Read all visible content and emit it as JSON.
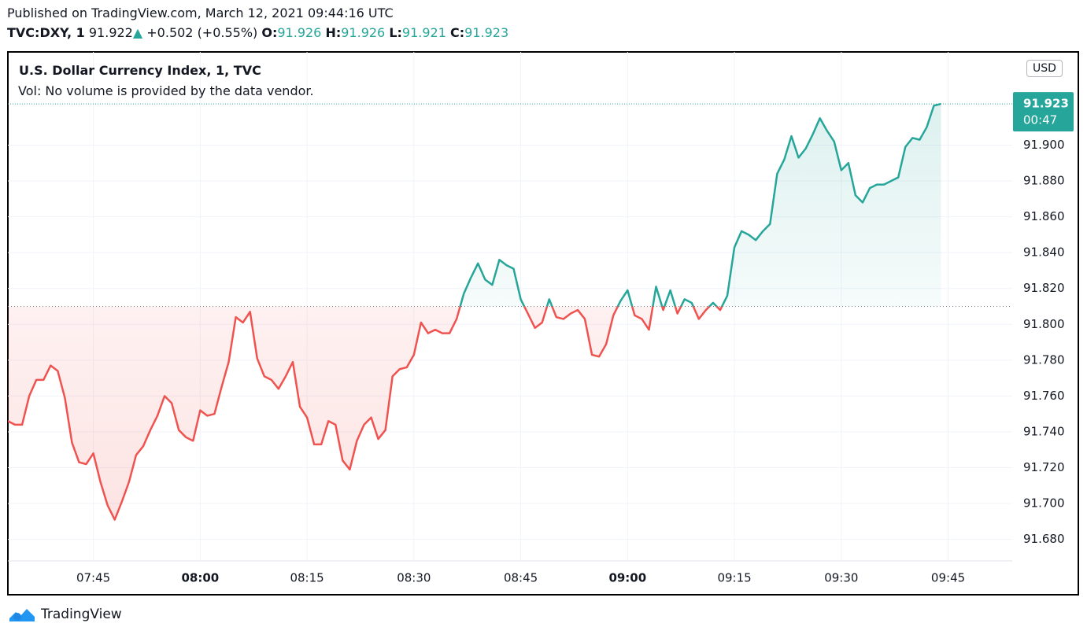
{
  "header": {
    "published": "Published on TradingView.com, March 12, 2021 09:44:16 UTC",
    "symbol": "TVC:DXY, 1",
    "last": "91.922",
    "change": "+0.502 (+0.55%)",
    "ohlc": [
      {
        "label": "O:",
        "value": "91.926"
      },
      {
        "label": "H:",
        "value": "91.926"
      },
      {
        "label": "L:",
        "value": "91.921"
      },
      {
        "label": "C:",
        "value": "91.923"
      }
    ]
  },
  "chart_data": {
    "type": "line",
    "title": "U.S. Dollar Currency Index, 1, TVC",
    "subtitle": "Vol: No volume is provided by the data vendor.",
    "currency": "USD",
    "countdown": "00:47",
    "x": [
      "07:33",
      "07:34",
      "07:35",
      "07:36",
      "07:37",
      "07:38",
      "07:39",
      "07:40",
      "07:41",
      "07:42",
      "07:43",
      "07:44",
      "07:45",
      "07:46",
      "07:47",
      "07:48",
      "07:49",
      "07:50",
      "07:51",
      "07:52",
      "07:53",
      "07:54",
      "07:55",
      "07:56",
      "07:57",
      "07:58",
      "07:59",
      "08:00",
      "08:01",
      "08:02",
      "08:03",
      "08:04",
      "08:05",
      "08:06",
      "08:07",
      "08:08",
      "08:09",
      "08:10",
      "08:11",
      "08:12",
      "08:13",
      "08:14",
      "08:15",
      "08:16",
      "08:17",
      "08:18",
      "08:19",
      "08:20",
      "08:21",
      "08:22",
      "08:23",
      "08:24",
      "08:25",
      "08:26",
      "08:27",
      "08:28",
      "08:29",
      "08:30",
      "08:31",
      "08:32",
      "08:33",
      "08:34",
      "08:35",
      "08:36",
      "08:37",
      "08:38",
      "08:39",
      "08:40",
      "08:41",
      "08:42",
      "08:43",
      "08:44",
      "08:45",
      "08:46",
      "08:47",
      "08:48",
      "08:49",
      "08:50",
      "08:51",
      "08:52",
      "08:53",
      "08:54",
      "08:55",
      "08:56",
      "08:57",
      "08:58",
      "08:59",
      "09:00",
      "09:01",
      "09:02",
      "09:03",
      "09:04",
      "09:05",
      "09:06",
      "09:07",
      "09:08",
      "09:09",
      "09:10",
      "09:11",
      "09:12",
      "09:13",
      "09:14",
      "09:15",
      "09:16",
      "09:17",
      "09:18",
      "09:19",
      "09:20",
      "09:21",
      "09:22",
      "09:23",
      "09:24",
      "09:25",
      "09:26",
      "09:27",
      "09:28",
      "09:29",
      "09:30",
      "09:31",
      "09:32",
      "09:33",
      "09:34",
      "09:35",
      "09:36",
      "09:37",
      "09:38",
      "09:39",
      "09:40",
      "09:41",
      "09:42",
      "09:43",
      "09:44"
    ],
    "values": [
      91.746,
      91.744,
      91.744,
      91.76,
      91.769,
      91.769,
      91.777,
      91.774,
      91.759,
      91.734,
      91.723,
      91.722,
      91.728,
      91.712,
      91.699,
      91.691,
      91.701,
      91.712,
      91.727,
      91.732,
      91.741,
      91.749,
      91.76,
      91.756,
      91.741,
      91.737,
      91.735,
      91.752,
      91.749,
      91.75,
      91.765,
      91.779,
      91.804,
      91.801,
      91.807,
      91.781,
      91.771,
      91.769,
      91.764,
      91.771,
      91.779,
      91.754,
      91.748,
      91.733,
      91.733,
      91.746,
      91.744,
      91.724,
      91.719,
      91.735,
      91.744,
      91.748,
      91.736,
      91.741,
      91.771,
      91.775,
      91.776,
      91.783,
      91.801,
      91.795,
      91.797,
      91.795,
      91.795,
      91.803,
      91.817,
      91.826,
      91.834,
      91.825,
      91.822,
      91.836,
      91.833,
      91.831,
      91.814,
      91.806,
      91.798,
      91.801,
      91.814,
      91.804,
      91.803,
      91.806,
      91.808,
      91.803,
      91.783,
      91.782,
      91.789,
      91.805,
      91.813,
      91.819,
      91.805,
      91.803,
      91.797,
      91.821,
      91.808,
      91.819,
      91.806,
      91.814,
      91.812,
      91.803,
      91.808,
      91.812,
      91.808,
      91.816,
      91.843,
      91.852,
      91.85,
      91.847,
      91.852,
      91.856,
      91.884,
      91.892,
      91.905,
      91.893,
      91.898,
      91.906,
      91.915,
      91.908,
      91.902,
      91.886,
      91.89,
      91.872,
      91.868,
      91.876,
      91.878,
      91.878,
      91.88,
      91.882,
      91.899,
      91.904,
      91.903,
      91.91,
      91.922,
      91.923
    ],
    "baseline": 91.81,
    "up_color": "#26a69a",
    "down_color": "#ef5350",
    "xlim": [
      "07:33",
      "09:54"
    ],
    "ylim": [
      91.668,
      91.952
    ],
    "xticks": [
      "07:45",
      {
        "value": "08:00",
        "label": "08:00",
        "bold": true
      },
      "08:15",
      "08:30",
      "08:45",
      {
        "value": "09:00",
        "label": "09:00",
        "bold": true
      },
      "09:15",
      "09:30",
      "09:45"
    ],
    "yticks": [
      {
        "value": 91.68,
        "label": "91.680"
      },
      {
        "value": 91.7,
        "label": "91.700"
      },
      {
        "value": 91.72,
        "label": "91.720"
      },
      {
        "value": 91.74,
        "label": "91.740"
      },
      {
        "value": 91.76,
        "label": "91.760"
      },
      {
        "value": 91.78,
        "label": "91.780"
      },
      {
        "value": 91.8,
        "label": "91.800"
      },
      {
        "value": 91.82,
        "label": "91.820"
      },
      {
        "value": 91.84,
        "label": "91.840"
      },
      {
        "value": 91.86,
        "label": "91.860"
      },
      {
        "value": 91.88,
        "label": "91.880"
      },
      {
        "value": 91.9,
        "label": "91.900"
      }
    ],
    "grid": true
  },
  "footer": {
    "brand": "TradingView"
  }
}
